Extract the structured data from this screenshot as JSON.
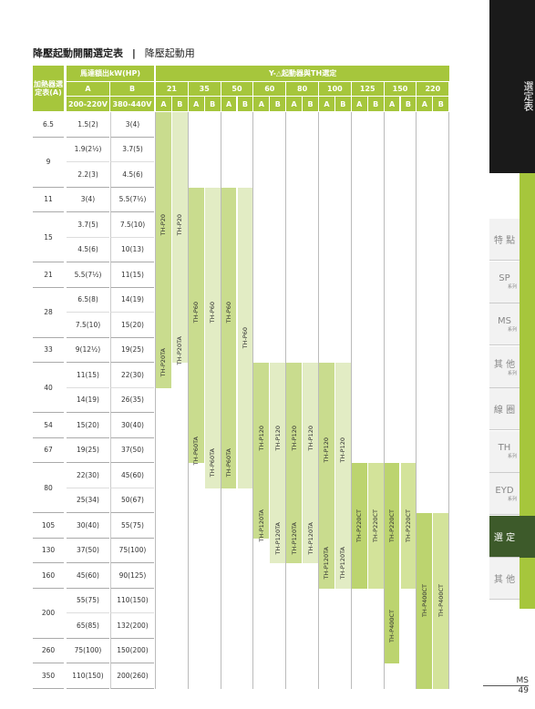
{
  "header": {
    "title": "降壓起動開關選定表",
    "separator": "|",
    "subtitle": "降壓起動用"
  },
  "table": {
    "heater_header": "加熱器選定表(A)",
    "motor_header": "馬達額出kW(HP)",
    "starter_header": "Y-△起動器與TH選定",
    "col_a": "A",
    "col_b": "B",
    "volt_a": "200-220V",
    "volt_b": "380-440V",
    "sizes": [
      "21",
      "35",
      "50",
      "60",
      "80",
      "100",
      "125",
      "150",
      "220"
    ],
    "groups": [
      {
        "heater": "6.5",
        "rows": [
          [
            "1.5(2)",
            "3(4)"
          ]
        ]
      },
      {
        "heater": "9",
        "rows": [
          [
            "1.9(2½)",
            "3.7(5)"
          ],
          [
            "2.2(3)",
            "4.5(6)"
          ]
        ]
      },
      {
        "heater": "11",
        "rows": [
          [
            "3(4)",
            "5.5(7½)"
          ]
        ]
      },
      {
        "heater": "15",
        "rows": [
          [
            "3.7(5)",
            "7.5(10)"
          ],
          [
            "4.5(6)",
            "10(13)"
          ]
        ]
      },
      {
        "heater": "21",
        "rows": [
          [
            "5.5(7½)",
            "11(15)"
          ]
        ]
      },
      {
        "heater": "28",
        "rows": [
          [
            "6.5(8)",
            "14(19)"
          ],
          [
            "7.5(10)",
            "15(20)"
          ]
        ]
      },
      {
        "heater": "33",
        "rows": [
          [
            "9(12½)",
            "19(25)"
          ]
        ]
      },
      {
        "heater": "40",
        "rows": [
          [
            "11(15)",
            "22(30)"
          ],
          [
            "14(19)",
            "26(35)"
          ]
        ]
      },
      {
        "heater": "54",
        "rows": [
          [
            "15(20)",
            "30(40)"
          ]
        ]
      },
      {
        "heater": "67",
        "rows": [
          [
            "19(25)",
            "37(50)"
          ]
        ]
      },
      {
        "heater": "80",
        "rows": [
          [
            "22(30)",
            "45(60)"
          ],
          [
            "25(34)",
            "50(67)"
          ]
        ]
      },
      {
        "heater": "105",
        "rows": [
          [
            "30(40)",
            "55(75)"
          ]
        ]
      },
      {
        "heater": "130",
        "rows": [
          [
            "37(50)",
            "75(100)"
          ]
        ]
      },
      {
        "heater": "160",
        "rows": [
          [
            "45(60)",
            "90(125)"
          ]
        ]
      },
      {
        "heater": "200",
        "rows": [
          [
            "55(75)",
            "110(150)"
          ],
          [
            "65(85)",
            "132(200)"
          ]
        ]
      },
      {
        "heater": "260",
        "rows": [
          [
            "75(100)",
            "150(200)"
          ]
        ]
      },
      {
        "heater": "350",
        "rows": [
          [
            "110(150)",
            "200(260)"
          ]
        ]
      }
    ],
    "bars": [
      "TH-P20",
      "TH-P20TA",
      "TH-P20",
      "TH-P20TA",
      "TH-P60",
      "TH-P60TA",
      "TH-P60",
      "TH-P60TA",
      "TH-P60",
      "TH-P60TA",
      "TH-P60",
      "TH-P120",
      "TH-P120TA",
      "TH-P120",
      "TH-P120TA",
      "TH-P120",
      "TH-P120TA",
      "TH-P120",
      "TH-P120TA",
      "TH-P120",
      "TH-P120TA",
      "TH-P120",
      "TH-P120TA",
      "TH-P220CT",
      "TH-P220CT",
      "TH-P220CT",
      "TH-P400CT",
      "TH-P220CT",
      "TH-P400CT",
      "TH-P400CT"
    ]
  },
  "sidebar": {
    "top": "選定表",
    "items": [
      [
        "特 點",
        ""
      ],
      [
        "SP",
        "系列"
      ],
      [
        "MS",
        "系列"
      ],
      [
        "其 他",
        "系列"
      ],
      [
        "線 圈",
        ""
      ],
      [
        "TH",
        "系列"
      ],
      [
        "EYD",
        "系列"
      ],
      [
        "選 定",
        ""
      ],
      [
        "其 他",
        ""
      ]
    ]
  },
  "footer": {
    "series": "MS",
    "page": "49"
  }
}
